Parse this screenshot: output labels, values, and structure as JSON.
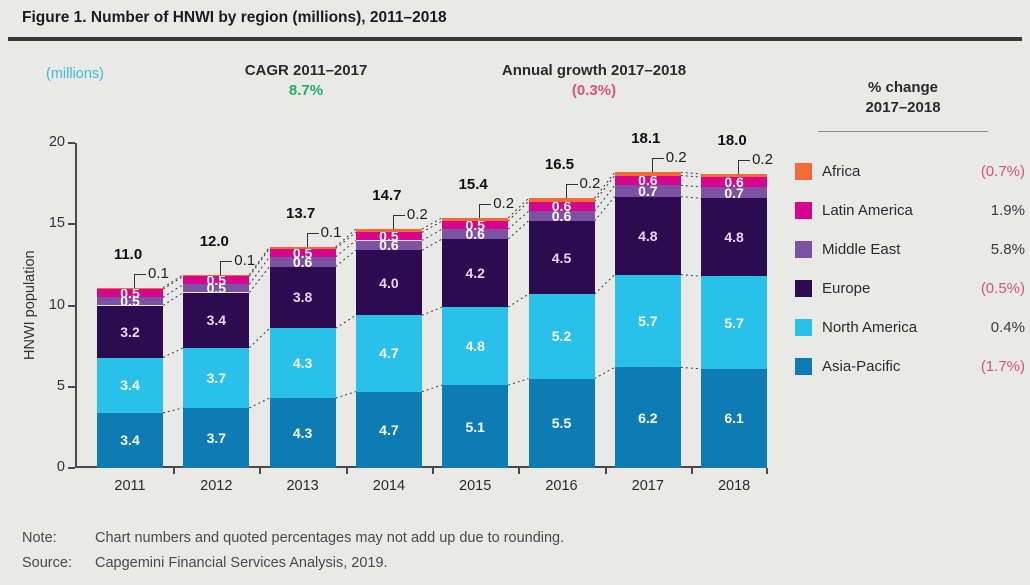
{
  "title": "Figure 1. Number of HNWI by region (millions), 2011–2018",
  "header": {
    "units_label": "(millions)",
    "cagr_label": "CAGR 2011–2017",
    "cagr_value": "8.7%",
    "growth_label": "Annual growth 2017–2018",
    "growth_value": "(0.3%)"
  },
  "legend": {
    "title_line1": "% change",
    "title_line2": "2017–2018",
    "items": [
      {
        "label": "Africa",
        "change": "(0.7%)",
        "negative": true,
        "color": "#f26b35"
      },
      {
        "label": "Latin America",
        "change": "1.9%",
        "negative": false,
        "color": "#d6058c"
      },
      {
        "label": "Middle East",
        "change": "5.8%",
        "negative": false,
        "color": "#7c52a5"
      },
      {
        "label": "Europe",
        "change": "(0.5%)",
        "negative": true,
        "color": "#2c0b50"
      },
      {
        "label": "North America",
        "change": "0.4%",
        "negative": false,
        "color": "#29c0ea"
      },
      {
        "label": "Asia-Pacific",
        "change": "(1.7%)",
        "negative": true,
        "color": "#0d7cb5"
      }
    ]
  },
  "chart_data": {
    "type": "bar",
    "stacked": true,
    "title": "Number of HNWI by region (millions), 2011–2018",
    "xlabel": "",
    "ylabel": "HNWI population",
    "ylim": [
      0,
      20
    ],
    "yticks": [
      0,
      5,
      10,
      15,
      20
    ],
    "grid": false,
    "legend_position": "right",
    "categories": [
      "2011",
      "2012",
      "2013",
      "2014",
      "2015",
      "2016",
      "2017",
      "2018"
    ],
    "totals": [
      11.0,
      12.0,
      13.7,
      14.7,
      15.4,
      16.5,
      18.1,
      18.0
    ],
    "series": [
      {
        "name": "Asia-Pacific",
        "color": "#0d7cb5",
        "label_color": "#ffffff",
        "values": [
          3.4,
          3.7,
          4.3,
          4.7,
          5.1,
          5.5,
          6.2,
          6.1
        ]
      },
      {
        "name": "North America",
        "color": "#29c0ea",
        "label_color": "#ffffff",
        "values": [
          3.4,
          3.7,
          4.3,
          4.7,
          4.8,
          5.2,
          5.7,
          5.7
        ]
      },
      {
        "name": "Europe",
        "color": "#2c0b50",
        "label_color": "#e8d7ee",
        "values": [
          3.2,
          3.4,
          3.8,
          4.0,
          4.2,
          4.5,
          4.8,
          4.8
        ]
      },
      {
        "name": "Middle East",
        "color": "#7c52a5",
        "label_color": "#ffffff",
        "values": [
          0.5,
          0.5,
          0.6,
          0.6,
          0.6,
          0.6,
          0.7,
          0.7
        ]
      },
      {
        "name": "Latin America",
        "color": "#d6058c",
        "label_color": "#ffffff",
        "values": [
          0.5,
          0.5,
          0.5,
          0.5,
          0.5,
          0.6,
          0.6,
          0.6
        ]
      },
      {
        "name": "Africa",
        "color": "#f26b35",
        "label_color": "#ffffff",
        "callout": true,
        "values": [
          0.1,
          0.1,
          0.1,
          0.2,
          0.2,
          0.2,
          0.2,
          0.2
        ]
      }
    ]
  },
  "notes": {
    "note_label": "Note:",
    "note_text": "Chart numbers and quoted percentages may not add up due to rounding.",
    "source_label": "Source:",
    "source_text": "Capgemini Financial Services Analysis, 2019."
  },
  "colors": {
    "background": "#e9e9e7",
    "title_rule": "#3a3a3a",
    "axis": "#4a4a4a",
    "accent_cyan": "#41bcdc",
    "positive_green": "#1fae66",
    "negative_pink": "#d9537a",
    "connector_line": "#3a3a3a"
  }
}
